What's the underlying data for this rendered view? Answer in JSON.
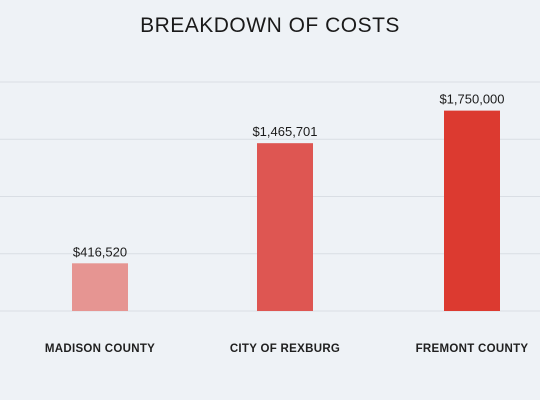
{
  "chart_data": {
    "type": "bar",
    "title": "BREAKDOWN OF COSTS",
    "categories": [
      "MADISON COUNTY",
      "CITY OF REXBURG",
      "FREMONT COUNTY"
    ],
    "values": [
      416520,
      1465701,
      1750000
    ],
    "value_labels": [
      "$416,520",
      "$1,465,701",
      "$1,750,000"
    ],
    "colors": [
      "#e69592",
      "#de5652",
      "#dc3a30"
    ],
    "xlabel": "",
    "ylabel": "",
    "ylim": [
      0,
      2000000
    ],
    "grid": true,
    "legend": "none"
  }
}
